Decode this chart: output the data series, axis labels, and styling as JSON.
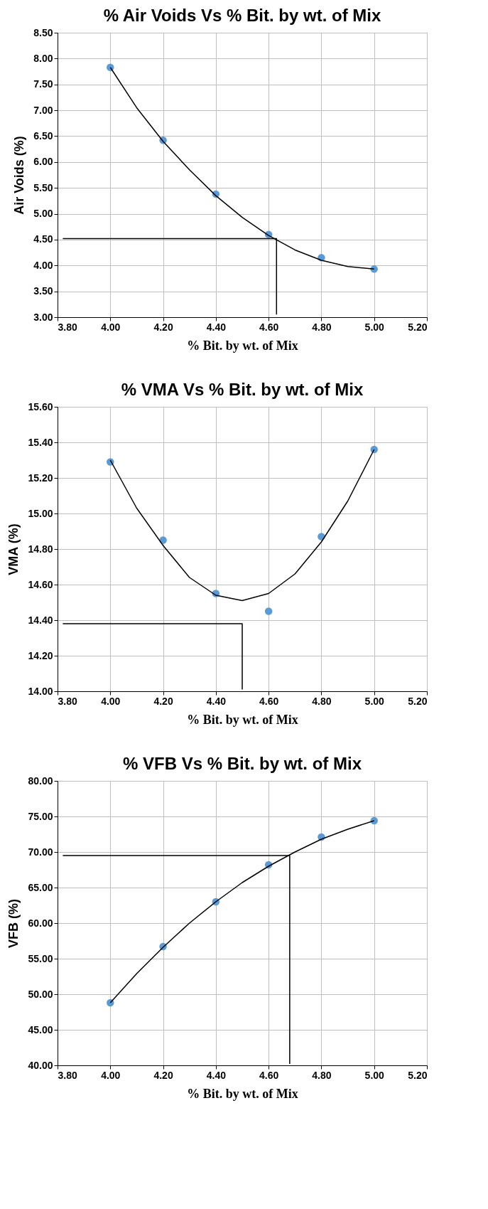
{
  "chart_data": [
    {
      "type": "scatter",
      "title": "% Air Voids Vs % Bit. by wt. of Mix",
      "xlabel": "% Bit. by wt. of Mix",
      "ylabel": "Air Voids (%)",
      "grid": true,
      "marker": "circle",
      "xlim": [
        3.8,
        5.2
      ],
      "xticks": [
        {
          "value": 3.8,
          "label": "3.80"
        },
        {
          "value": 4.0,
          "label": "4.00"
        },
        {
          "value": 4.2,
          "label": "4.20"
        },
        {
          "value": 4.4,
          "label": "4.40"
        },
        {
          "value": 4.6,
          "label": "4.60"
        },
        {
          "value": 4.8,
          "label": "4.80"
        },
        {
          "value": 5.0,
          "label": "5.00"
        },
        {
          "value": 5.2,
          "label": "5.20"
        }
      ],
      "ylim": [
        3.0,
        8.5
      ],
      "yticks": [
        {
          "value": 3.0,
          "label": "3.00"
        },
        {
          "value": 3.5,
          "label": "3.50"
        },
        {
          "value": 4.0,
          "label": "4.00"
        },
        {
          "value": 4.5,
          "label": "4.50"
        },
        {
          "value": 5.0,
          "label": "5.00"
        },
        {
          "value": 5.5,
          "label": "5.50"
        },
        {
          "value": 6.0,
          "label": "6.00"
        },
        {
          "value": 6.5,
          "label": "6.50"
        },
        {
          "value": 7.0,
          "label": "7.00"
        },
        {
          "value": 7.5,
          "label": "7.50"
        },
        {
          "value": 8.0,
          "label": "8.00"
        },
        {
          "value": 8.5,
          "label": "8.50"
        }
      ],
      "series": [
        {
          "color": "#5b9bd5",
          "x": [
            4.0,
            4.2,
            4.4,
            4.6,
            4.8,
            5.0
          ],
          "values": [
            7.83,
            6.42,
            5.38,
            4.6,
            4.15,
            3.93
          ]
        },
        {
          "type": "line",
          "color": "#000000",
          "marker": "none",
          "x": [
            4.0,
            4.1,
            4.2,
            4.3,
            4.4,
            4.5,
            4.6,
            4.7,
            4.8,
            4.9,
            5.0
          ],
          "values": [
            7.83,
            7.05,
            6.4,
            5.85,
            5.35,
            4.93,
            4.58,
            4.3,
            4.1,
            3.98,
            3.93
          ]
        },
        {
          "type": "line",
          "color": "#000000",
          "marker": "none",
          "x": [
            3.82,
            4.63,
            4.63
          ],
          "values": [
            4.52,
            4.52,
            3.05
          ]
        }
      ]
    },
    {
      "type": "scatter",
      "title": "% VMA Vs % Bit. by wt. of Mix",
      "xlabel": "% Bit. by wt. of Mix",
      "ylabel": "VMA (%)",
      "grid": true,
      "marker": "circle",
      "xlim": [
        3.8,
        5.2
      ],
      "xticks": [
        {
          "value": 3.8,
          "label": "3.80"
        },
        {
          "value": 4.0,
          "label": "4.00"
        },
        {
          "value": 4.2,
          "label": "4.20"
        },
        {
          "value": 4.4,
          "label": "4.40"
        },
        {
          "value": 4.6,
          "label": "4.60"
        },
        {
          "value": 4.8,
          "label": "4.80"
        },
        {
          "value": 5.0,
          "label": "5.00"
        },
        {
          "value": 5.2,
          "label": "5.20"
        }
      ],
      "ylim": [
        14.0,
        15.6
      ],
      "yticks": [
        {
          "value": 14.0,
          "label": "14.00"
        },
        {
          "value": 14.2,
          "label": "14.20"
        },
        {
          "value": 14.4,
          "label": "14.40"
        },
        {
          "value": 14.6,
          "label": "14.60"
        },
        {
          "value": 14.8,
          "label": "14.80"
        },
        {
          "value": 15.0,
          "label": "15.00"
        },
        {
          "value": 15.2,
          "label": "15.20"
        },
        {
          "value": 15.4,
          "label": "15.40"
        },
        {
          "value": 15.6,
          "label": "15.60"
        }
      ],
      "series": [
        {
          "color": "#5b9bd5",
          "x": [
            4.0,
            4.2,
            4.4,
            4.6,
            4.8,
            5.0
          ],
          "values": [
            15.29,
            14.85,
            14.55,
            14.45,
            14.87,
            15.36
          ]
        },
        {
          "type": "line",
          "color": "#000000",
          "marker": "none",
          "x": [
            4.0,
            4.1,
            4.2,
            4.3,
            4.4,
            4.5,
            4.6,
            4.7,
            4.8,
            4.9,
            5.0
          ],
          "values": [
            15.3,
            15.03,
            14.82,
            14.64,
            14.54,
            14.51,
            14.55,
            14.66,
            14.84,
            15.07,
            15.36
          ]
        },
        {
          "type": "line",
          "color": "#000000",
          "marker": "none",
          "x": [
            3.82,
            4.5,
            4.5
          ],
          "values": [
            14.38,
            14.38,
            14.01
          ]
        }
      ]
    },
    {
      "type": "scatter",
      "title": "% VFB Vs % Bit. by wt. of Mix",
      "xlabel": "% Bit. by wt. of Mix",
      "ylabel": "VFB (%)",
      "grid": true,
      "marker": "circle",
      "xlim": [
        3.8,
        5.2
      ],
      "xticks": [
        {
          "value": 3.8,
          "label": "3.80"
        },
        {
          "value": 4.0,
          "label": "4.00"
        },
        {
          "value": 4.2,
          "label": "4.20"
        },
        {
          "value": 4.4,
          "label": "4.40"
        },
        {
          "value": 4.6,
          "label": "4.60"
        },
        {
          "value": 4.8,
          "label": "4.80"
        },
        {
          "value": 5.0,
          "label": "5.00"
        },
        {
          "value": 5.2,
          "label": "5.20"
        }
      ],
      "ylim": [
        40.0,
        80.0
      ],
      "yticks": [
        {
          "value": 40.0,
          "label": "40.00"
        },
        {
          "value": 45.0,
          "label": "45.00"
        },
        {
          "value": 50.0,
          "label": "50.00"
        },
        {
          "value": 55.0,
          "label": "55.00"
        },
        {
          "value": 60.0,
          "label": "60.00"
        },
        {
          "value": 65.0,
          "label": "65.00"
        },
        {
          "value": 70.0,
          "label": "70.00"
        },
        {
          "value": 75.0,
          "label": "75.00"
        },
        {
          "value": 80.0,
          "label": "80.00"
        }
      ],
      "series": [
        {
          "color": "#5b9bd5",
          "x": [
            4.0,
            4.2,
            4.4,
            4.6,
            4.8,
            5.0
          ],
          "values": [
            48.8,
            56.7,
            63.0,
            68.2,
            72.1,
            74.4
          ]
        },
        {
          "type": "line",
          "color": "#000000",
          "marker": "none",
          "x": [
            4.0,
            4.1,
            4.2,
            4.3,
            4.4,
            4.5,
            4.6,
            4.7,
            4.8,
            4.9,
            5.0
          ],
          "values": [
            48.8,
            52.9,
            56.6,
            60.0,
            63.0,
            65.7,
            68.0,
            70.0,
            71.8,
            73.2,
            74.4
          ]
        },
        {
          "type": "line",
          "color": "#000000",
          "marker": "none",
          "x": [
            3.82,
            4.68,
            4.68
          ],
          "values": [
            69.5,
            69.5,
            40.2
          ]
        }
      ]
    }
  ]
}
